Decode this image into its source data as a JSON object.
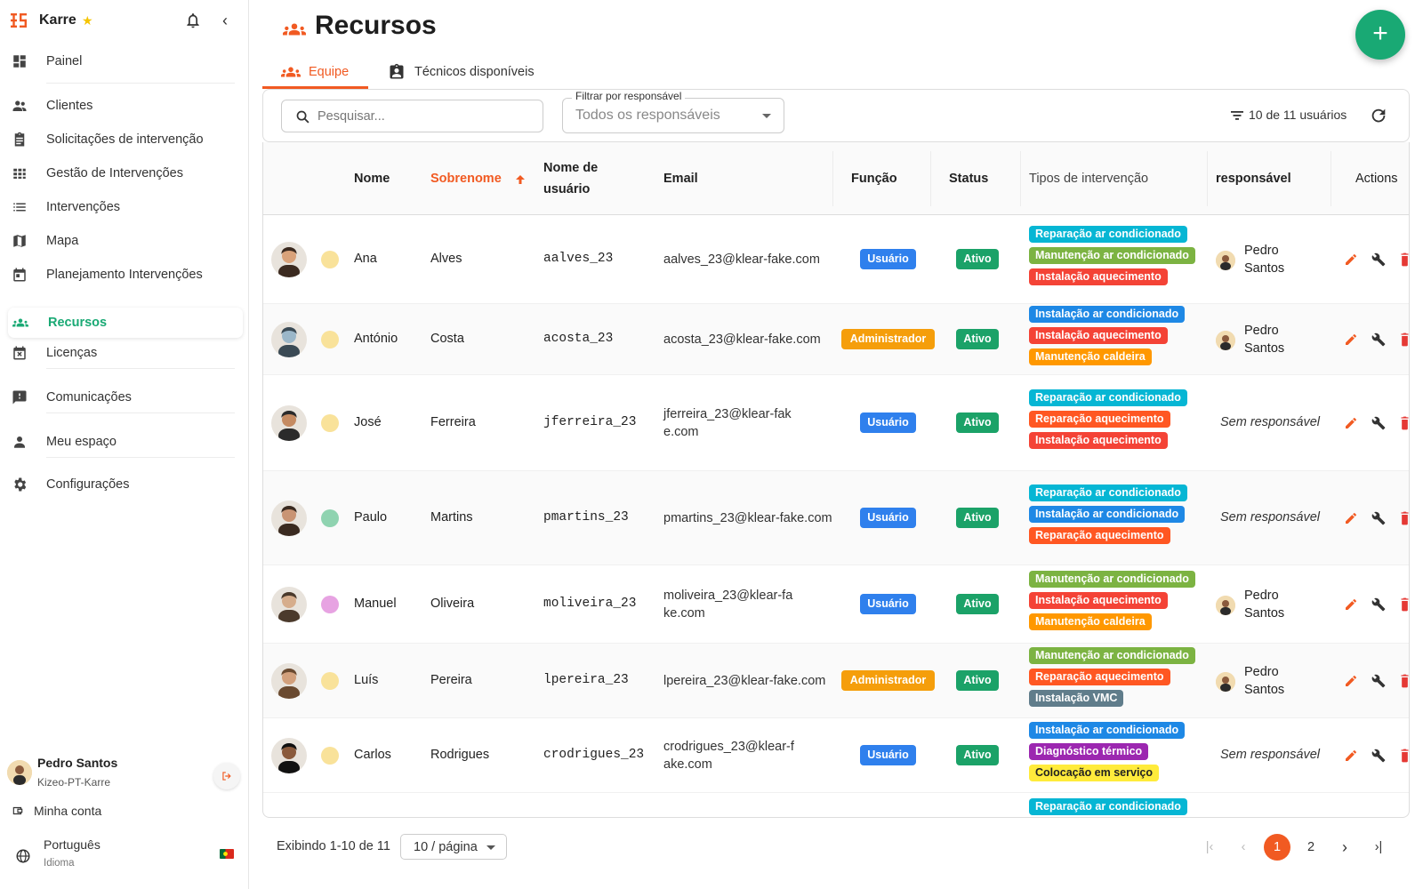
{
  "sidebar": {
    "app_name": "Karre",
    "nav": [
      {
        "label": "Painel",
        "icon": "dashboard-icon"
      },
      {
        "label": "Clientes",
        "icon": "people-icon"
      },
      {
        "label": "Solicitações de intervenção",
        "icon": "clipboard-icon"
      },
      {
        "label": "Gestão de Intervenções",
        "icon": "grid-icon"
      },
      {
        "label": "Intervenções",
        "icon": "list-icon"
      },
      {
        "label": "Mapa",
        "icon": "map-icon"
      },
      {
        "label": "Planejamento Intervenções",
        "icon": "calendar-icon"
      },
      {
        "label": "Recursos",
        "icon": "groups-icon"
      },
      {
        "label": "Licenças",
        "icon": "calendar-x-icon"
      },
      {
        "label": "Comunicações",
        "icon": "feedback-icon"
      },
      {
        "label": "Meu espaço",
        "icon": "person-icon"
      },
      {
        "label": "Configurações",
        "icon": "gear-icon"
      }
    ],
    "user": {
      "name": "Pedro Santos",
      "org": "Kizeo-PT-Karre"
    },
    "my_account": "Minha conta",
    "language": {
      "label": "Português",
      "sub": "Idioma"
    }
  },
  "page": {
    "title": "Recursos",
    "tabs": [
      {
        "label": "Equipe",
        "active": true
      },
      {
        "label": "Técnicos disponíveis",
        "active": false
      }
    ],
    "search_placeholder": "Pesquisar...",
    "filter": {
      "label": "Filtrar por responsável",
      "value": "Todos os responsáveis"
    },
    "count_text": "10 de 11 usuários"
  },
  "table": {
    "headers": {
      "nome": "Nome",
      "sobrenome": "Sobrenome",
      "usuario_1": "Nome de",
      "usuario_2": "usuário",
      "email": "Email",
      "funcao": "Função",
      "status": "Status",
      "tipos": "Tipos de intervenção",
      "responsavel": "responsável",
      "actions": "Actions"
    },
    "rows": [
      {
        "first": "Ana",
        "last": "Alves",
        "username": "aalves_23",
        "email": "aalves_23@klear-fake.com",
        "role": "Usuário",
        "status": "Ativo",
        "dot": "#f9e29a",
        "tags": [
          "Reparação ar condicionado",
          "Manutenção ar condicionado",
          "Instalação aquecimento"
        ],
        "responsible": "Pedro Santos"
      },
      {
        "first": "António",
        "last": "Costa",
        "username": "acosta_23",
        "email": "acosta_23@klear-fake.com",
        "role": "Administrador",
        "status": "Ativo",
        "dot": "#f9e29a",
        "tags": [
          "Instalação ar condicionado",
          "Instalação aquecimento",
          "Manutenção caldeira"
        ],
        "responsible": "Pedro Santos"
      },
      {
        "first": "José",
        "last": "Ferreira",
        "username": "jferreira_23",
        "email": "jferreira_23@klear-fake.com",
        "role": "Usuário",
        "status": "Ativo",
        "dot": "#f9e29a",
        "tags": [
          "Reparação ar condicionado",
          "Reparação aquecimento",
          "Instalação aquecimento"
        ],
        "responsible": "Sem responsável"
      },
      {
        "first": "Paulo",
        "last": "Martins",
        "username": "pmartins_23",
        "email": "pmartins_23@klear-fake.com",
        "role": "Usuário",
        "status": "Ativo",
        "dot": "#8fd3b0",
        "tags": [
          "Reparação ar condicionado",
          "Instalação ar condicionado",
          "Reparação aquecimento"
        ],
        "responsible": "Sem responsável"
      },
      {
        "first": "Manuel",
        "last": "Oliveira",
        "username": "moliveira_23",
        "email": "moliveira_23@klear-fake.com",
        "role": "Usuário",
        "status": "Ativo",
        "dot": "#e7a3e2",
        "tags": [
          "Manutenção ar condicionado",
          "Instalação aquecimento",
          "Manutenção caldeira"
        ],
        "responsible": "Pedro Santos"
      },
      {
        "first": "Luís",
        "last": "Pereira",
        "username": "lpereira_23",
        "email": "lpereira_23@klear-fake.com",
        "role": "Administrador",
        "status": "Ativo",
        "dot": "#f9e29a",
        "tags": [
          "Manutenção ar condicionado",
          "Reparação aquecimento",
          "Instalação VMC"
        ],
        "responsible": "Pedro Santos"
      },
      {
        "first": "Carlos",
        "last": "Rodrigues",
        "username": "crodrigues_23",
        "email": "crodrigues_23@klear-fake.com",
        "role": "Usuário",
        "status": "Ativo",
        "dot": "#f9e29a",
        "tags": [
          "Instalação ar condicionado",
          "Diagnóstico térmico",
          "Colocação em serviço"
        ],
        "responsible": "Sem responsável"
      }
    ],
    "partial_tag": "Reparação ar condicionado"
  },
  "colors": {
    "accent": "#f15a22",
    "green": "#19a974",
    "role_user": "#2f80ed",
    "role_admin": "#f59e0b",
    "status_active": "#1ba268",
    "tag_reparacao_ar": "#06b6d4",
    "tag_manutencao_ar": "#7cb342",
    "tag_instalacao_aquec": "#f44336",
    "tag_instalacao_ar": "#1e88e5",
    "tag_manutencao_caldeira": "#ff9800",
    "tag_reparacao_aquec": "#ff5722",
    "tag_vmc": "#607d8b",
    "tag_diagnostico": "#9c27b0",
    "tag_colocacao": "#ffeb3b"
  },
  "footer": {
    "showing": "Exibindo 1-10 de 11",
    "per_page": "10 / página",
    "pages": [
      "1",
      "2"
    ],
    "current_page": "1"
  }
}
